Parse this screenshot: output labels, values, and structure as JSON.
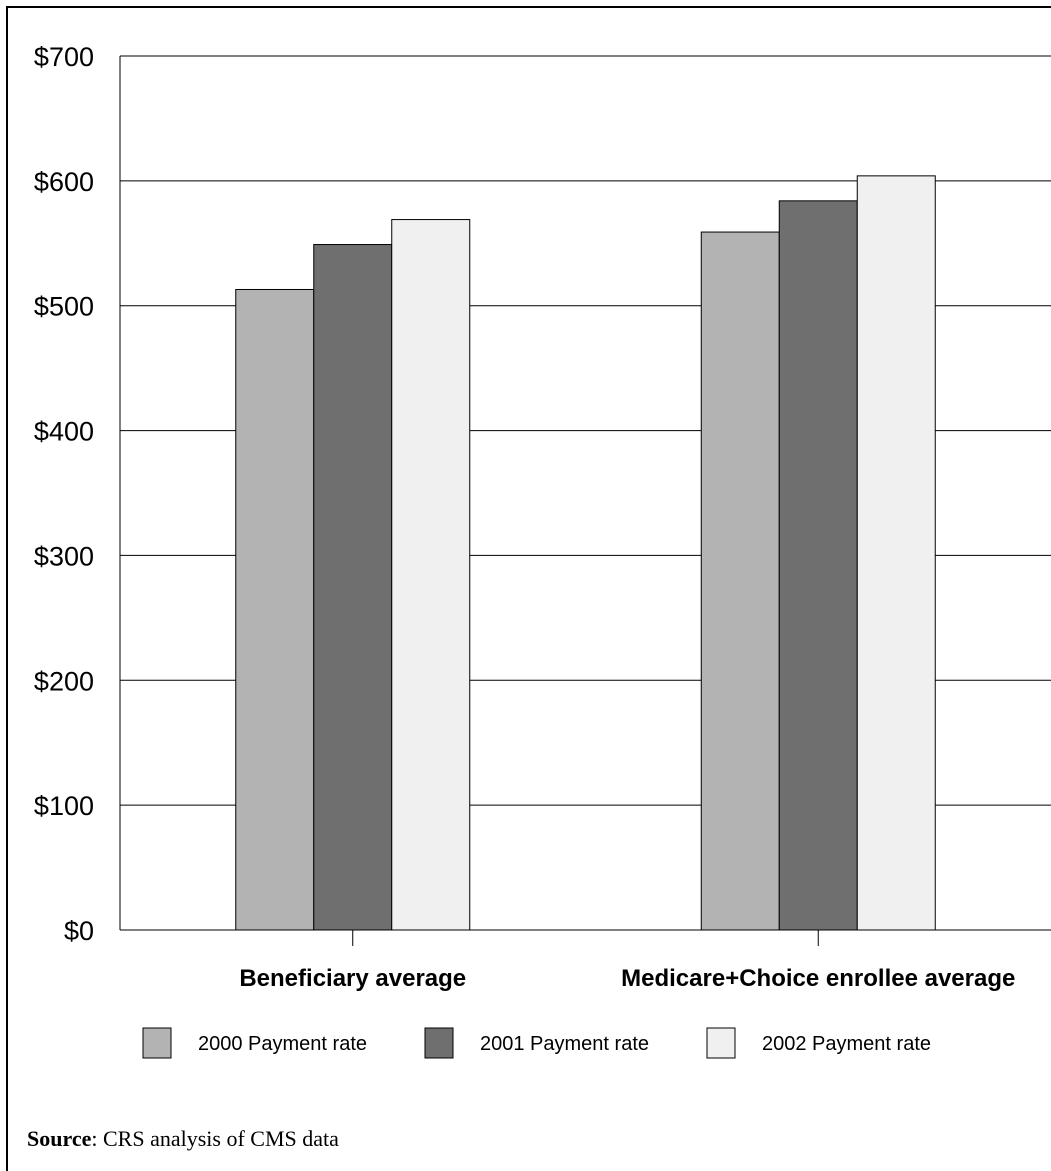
{
  "chart_data": {
    "type": "bar",
    "categories": [
      "Beneficiary average",
      "Medicare+Choice enrollee average"
    ],
    "series": [
      {
        "name": "2000 Payment rate",
        "values": [
          513,
          559
        ],
        "color": "#b3b3b3"
      },
      {
        "name": "2001 Payment rate",
        "values": [
          549,
          584
        ],
        "color": "#6f6f6f"
      },
      {
        "name": "2002 Payment rate",
        "values": [
          569,
          604
        ],
        "color": "#f0f0f0"
      }
    ],
    "ylim": [
      0,
      700
    ],
    "yticks": [
      0,
      100,
      200,
      300,
      400,
      500,
      600,
      700
    ],
    "ytick_labels": [
      "$0",
      "$100",
      "$200",
      "$300",
      "$400",
      "$500",
      "$600",
      "$700"
    ],
    "grid": true,
    "legend_position": "bottom"
  },
  "source": {
    "label": "Source",
    "text": ": CRS analysis of CMS data"
  }
}
